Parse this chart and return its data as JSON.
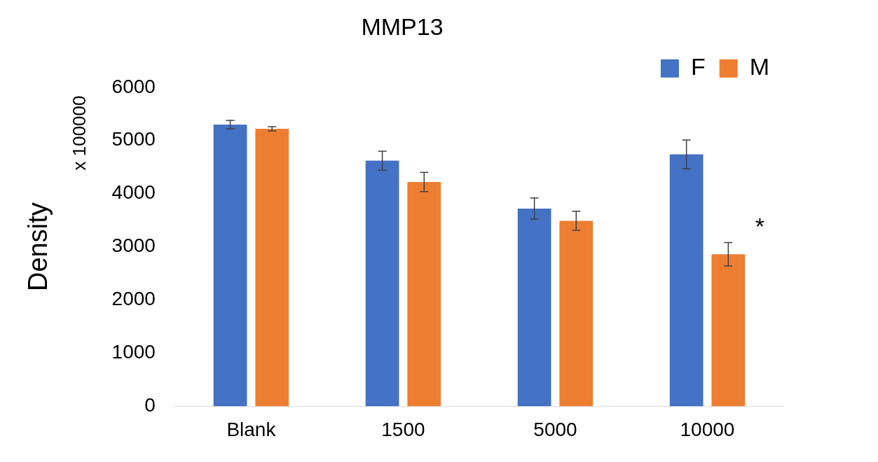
{
  "chart_data": {
    "type": "bar",
    "title": "MMP13",
    "ylabel": "Density",
    "categories": [
      "Blank",
      "1500",
      "5000",
      "10000"
    ],
    "series": [
      {
        "name": "F",
        "color": "#4472c4",
        "values": [
          5300,
          4620,
          3720,
          4740
        ],
        "errors": [
          80,
          180,
          200,
          270
        ]
      },
      {
        "name": "M",
        "color": "#ed7d31",
        "values": [
          5220,
          4220,
          3490,
          2860
        ],
        "errors": [
          40,
          180,
          180,
          220
        ]
      }
    ],
    "ylim": [
      0,
      6000
    ],
    "yticks": [
      0,
      1000,
      2000,
      3000,
      4000,
      5000,
      6000
    ],
    "grid": false,
    "legend": "top right",
    "annotations": [
      "x 100000",
      "*"
    ]
  }
}
